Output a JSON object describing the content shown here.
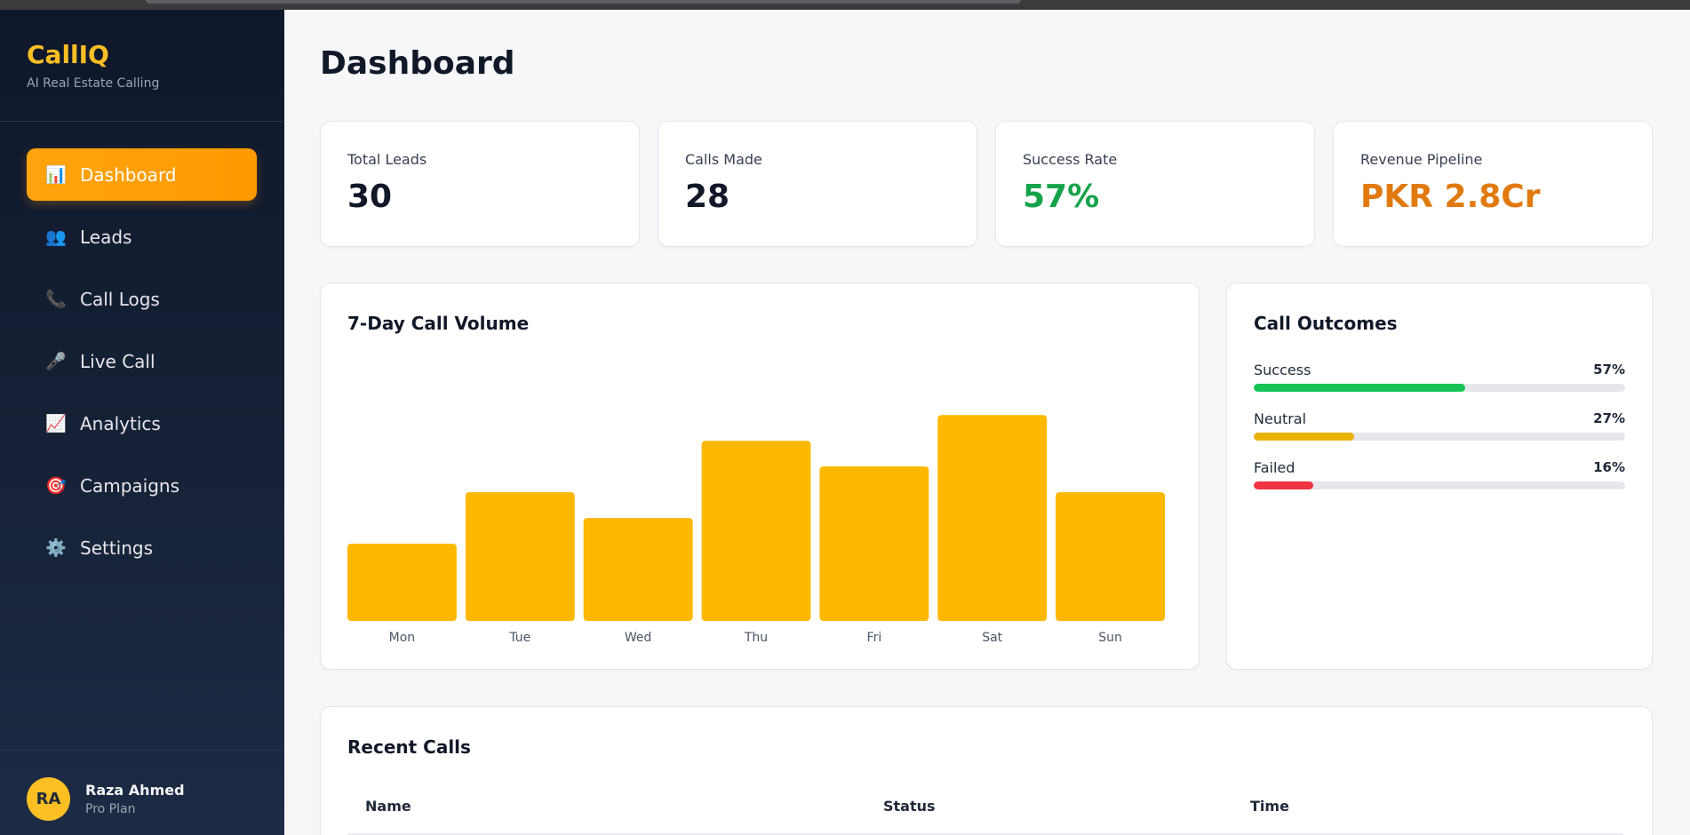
{
  "app": {
    "name": "CallIQ",
    "tagline": "AI Real Estate Calling"
  },
  "sidebar": {
    "items": [
      {
        "icon": "📊",
        "icon_name": "bar-chart-icon",
        "label": "Dashboard",
        "active": true
      },
      {
        "icon": "👥",
        "icon_name": "users-icon",
        "label": "Leads",
        "active": false
      },
      {
        "icon": "📞",
        "icon_name": "phone-icon",
        "label": "Call Logs",
        "active": false
      },
      {
        "icon": "🎤",
        "icon_name": "microphone-icon",
        "label": "Live Call",
        "active": false
      },
      {
        "icon": "📈",
        "icon_name": "trend-chart-icon",
        "label": "Analytics",
        "active": false
      },
      {
        "icon": "🎯",
        "icon_name": "target-icon",
        "label": "Campaigns",
        "active": false
      },
      {
        "icon": "⚙️",
        "icon_name": "gear-icon",
        "label": "Settings",
        "active": false
      }
    ],
    "user": {
      "initials": "RA",
      "name": "Raza Ahmed",
      "plan": "Pro Plan"
    }
  },
  "page": {
    "title": "Dashboard"
  },
  "stats": [
    {
      "label": "Total Leads",
      "value": "30",
      "color": "#111827"
    },
    {
      "label": "Calls Made",
      "value": "28",
      "color": "#111827"
    },
    {
      "label": "Success Rate",
      "value": "57%",
      "color": "#16a34a"
    },
    {
      "label": "Revenue Pipeline",
      "value": "PKR 2.8Cr",
      "color": "#e07a10"
    }
  ],
  "volume_card": {
    "title": "7-Day Call Volume"
  },
  "chart_data": {
    "type": "bar",
    "title": "7-Day Call Volume",
    "categories": [
      "Mon",
      "Tue",
      "Wed",
      "Thu",
      "Fri",
      "Sat",
      "Sun"
    ],
    "values": [
      3,
      5,
      4,
      7,
      6,
      8,
      5
    ],
    "ylim": [
      0,
      8.8
    ],
    "bar_color": "#ffb800",
    "grid": false
  },
  "outcomes_card": {
    "title": "Call Outcomes",
    "items": [
      {
        "label": "Success",
        "pct": "57%",
        "value": 57,
        "color": "#16c356"
      },
      {
        "label": "Neutral",
        "pct": "27%",
        "value": 27,
        "color": "#eab308"
      },
      {
        "label": "Failed",
        "pct": "16%",
        "value": 16,
        "color": "#ef333f"
      }
    ]
  },
  "recent_calls": {
    "title": "Recent Calls",
    "columns": [
      "Name",
      "Status",
      "Time"
    ]
  }
}
